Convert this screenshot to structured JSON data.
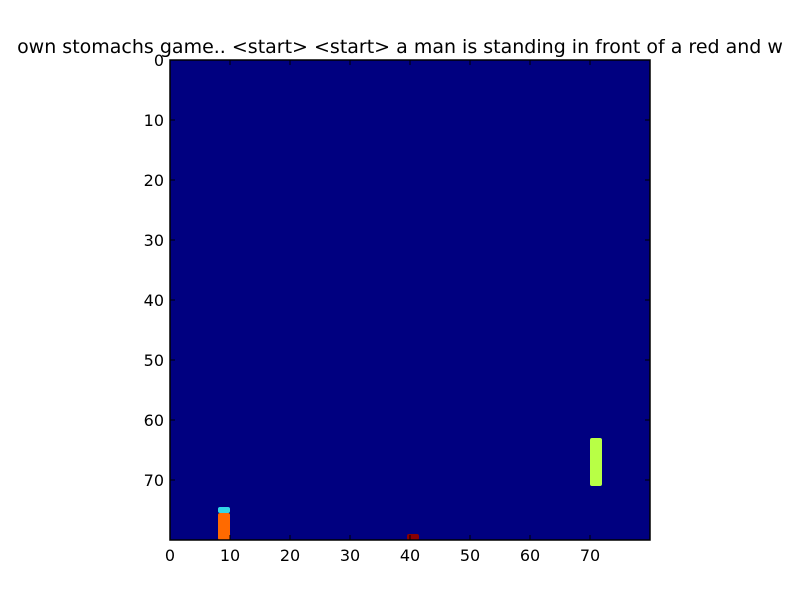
{
  "chart_data": {
    "type": "heatmap",
    "title": "own stomachs game.. <start> <start> a man is standing in front of a red and w",
    "xlabel": "",
    "ylabel": "",
    "xlim": [
      0,
      80
    ],
    "ylim": [
      80,
      0
    ],
    "x_ticks": [
      "0",
      "10",
      "20",
      "30",
      "40",
      "50",
      "60",
      "70"
    ],
    "y_ticks": [
      "0",
      "10",
      "20",
      "30",
      "40",
      "50",
      "60",
      "70"
    ],
    "grid": false,
    "colormap": "jet",
    "background_color": "#000080",
    "objects": [
      {
        "name": "left-paddle-cap",
        "x_start": 8,
        "x_end": 10,
        "y_start": 74.5,
        "y_end": 75.5,
        "color": "#33d6e6"
      },
      {
        "name": "left-paddle",
        "x_start": 8,
        "x_end": 10,
        "y_start": 75.5,
        "y_end": 80,
        "color": "#ff6a00"
      },
      {
        "name": "ball",
        "x_start": 39.5,
        "x_end": 41.5,
        "y_start": 79,
        "y_end": 80,
        "color": "#8b0000"
      },
      {
        "name": "right-paddle",
        "x_start": 70,
        "x_end": 72,
        "y_start": 63,
        "y_end": 71,
        "color": "#b8ff45"
      }
    ]
  }
}
